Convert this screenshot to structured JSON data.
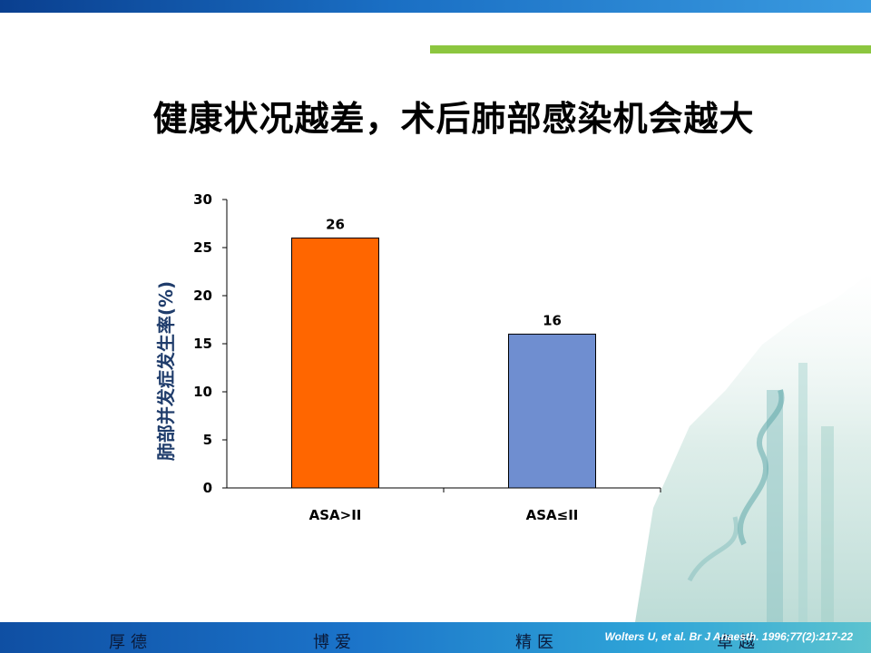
{
  "slide": {
    "title": "健康状况越差，术后肺部感染机会越大",
    "footer_words": [
      "厚德",
      "博爱",
      "精医",
      "卓越"
    ],
    "citation": "Wolters U, et al. Br J Anaesth. 1996;77(2):217-22"
  },
  "colors": {
    "top_bar": "#1a6fc4",
    "accent_line": "#8cc63f",
    "bar_1": "#ff6600",
    "bar_2": "#6f8ed0",
    "ylabel": "#1f3c6b"
  },
  "chart_data": {
    "type": "bar",
    "title": "",
    "xlabel": "",
    "ylabel": "肺部并发症发生率(%)",
    "categories": [
      "ASA>II",
      "ASA≤II"
    ],
    "values": [
      26,
      16
    ],
    "data_labels": [
      "26",
      "16"
    ],
    "ylim": [
      0,
      30
    ],
    "yticks": [
      0,
      5,
      10,
      15,
      20,
      25,
      30
    ],
    "grid": false,
    "legend": "none"
  }
}
